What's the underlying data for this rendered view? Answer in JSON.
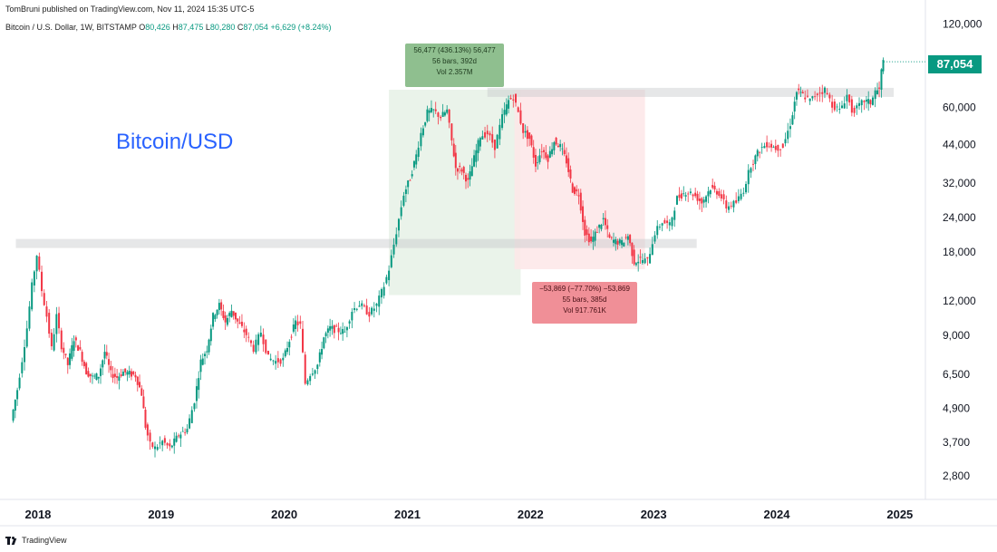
{
  "header": {
    "published": "TomBruni published on TradingView.com, Nov 11, 2024 15:35 UTC-5",
    "symbol": "Bitcoin / U.S. Dollar, 1W, BITSTAMP",
    "o_label": "O",
    "o": "80,426",
    "h_label": "H",
    "h": "87,475",
    "l_label": "L",
    "l": "80,280",
    "c_label": "C",
    "c": "87,054",
    "change": "+6,629 (+8.24%)"
  },
  "footer": {
    "brand": "TradingView"
  },
  "annotation": "Bitcoin/USD",
  "last_price": "87,054",
  "measure_up": {
    "line1": "56,477 (436.13%) 56,477",
    "line2": "56 bars, 392d",
    "line3": "Vol 2.357M"
  },
  "measure_down": {
    "line1": "−53,869 (−77.70%) −53,869",
    "line2": "55 bars, 385d",
    "line3": "Vol 917.761K"
  },
  "colors": {
    "up": "#089981",
    "down": "#f23645",
    "annotation": "#2962ff",
    "measure_up_fill": "#e8f2e8",
    "measure_down_fill": "#fde6e8"
  },
  "chart_data": {
    "type": "candlestick",
    "title": "",
    "x_ticks": [
      "2018",
      "2019",
      "2020",
      "2021",
      "2022",
      "2023",
      "2024",
      "2025"
    ],
    "y_ticks": [
      120000,
      60000,
      44000,
      32000,
      24000,
      18000,
      12000,
      9000,
      6500,
      4900,
      3700,
      2800
    ],
    "y_tick_labels": [
      "120,000",
      "60,000",
      "44,000",
      "32,000",
      "24,000",
      "18,000",
      "12,000",
      "9,000",
      "6,500",
      "4,900",
      "3,700",
      "2,800"
    ],
    "y_scale": "log",
    "ylim": [
      2300,
      130000
    ],
    "xlim": [
      2017.75,
      2025.2
    ],
    "resistance_zones": [
      {
        "price": 19200,
        "from": 2017.82,
        "to": 2023.35
      },
      {
        "price": 67500,
        "from": 2021.65,
        "to": 2024.95
      }
    ],
    "measures": [
      {
        "from": 2020.85,
        "to": 2021.92,
        "low": 12500,
        "high": 69000,
        "change": 56477
      },
      {
        "from": 2021.87,
        "to": 2022.93,
        "low": 15500,
        "high": 69000,
        "change": -53869
      }
    ],
    "price_path": [
      [
        2017.79,
        4400
      ],
      [
        2017.84,
        5700
      ],
      [
        2017.88,
        7300
      ],
      [
        2017.92,
        9500
      ],
      [
        2017.96,
        13500
      ],
      [
        2018.0,
        17500
      ],
      [
        2018.04,
        13000
      ],
      [
        2018.08,
        10500
      ],
      [
        2018.12,
        8000
      ],
      [
        2018.16,
        10500
      ],
      [
        2018.2,
        8200
      ],
      [
        2018.25,
        7000
      ],
      [
        2018.3,
        8700
      ],
      [
        2018.35,
        7800
      ],
      [
        2018.4,
        6600
      ],
      [
        2018.45,
        6300
      ],
      [
        2018.5,
        6400
      ],
      [
        2018.55,
        7800
      ],
      [
        2018.6,
        6500
      ],
      [
        2018.65,
        6300
      ],
      [
        2018.7,
        6600
      ],
      [
        2018.75,
        6500
      ],
      [
        2018.8,
        6400
      ],
      [
        2018.85,
        5500
      ],
      [
        2018.88,
        4200
      ],
      [
        2018.92,
        3600
      ],
      [
        2018.96,
        3500
      ],
      [
        2019.02,
        3700
      ],
      [
        2019.08,
        3500
      ],
      [
        2019.15,
        3900
      ],
      [
        2019.22,
        4100
      ],
      [
        2019.28,
        5200
      ],
      [
        2019.33,
        7200
      ],
      [
        2019.38,
        8000
      ],
      [
        2019.43,
        10500
      ],
      [
        2019.48,
        11500
      ],
      [
        2019.53,
        10000
      ],
      [
        2019.58,
        11000
      ],
      [
        2019.63,
        10000
      ],
      [
        2019.7,
        9000
      ],
      [
        2019.76,
        8000
      ],
      [
        2019.82,
        9200
      ],
      [
        2019.88,
        7400
      ],
      [
        2019.94,
        7200
      ],
      [
        2020.0,
        7300
      ],
      [
        2020.05,
        8600
      ],
      [
        2020.1,
        10000
      ],
      [
        2020.14,
        9700
      ],
      [
        2020.18,
        6000
      ],
      [
        2020.22,
        6500
      ],
      [
        2020.28,
        7000
      ],
      [
        2020.33,
        8800
      ],
      [
        2020.38,
        9500
      ],
      [
        2020.45,
        9300
      ],
      [
        2020.5,
        9200
      ],
      [
        2020.56,
        11000
      ],
      [
        2020.62,
        11600
      ],
      [
        2020.7,
        10700
      ],
      [
        2020.76,
        11500
      ],
      [
        2020.82,
        13500
      ],
      [
        2020.86,
        15500
      ],
      [
        2020.9,
        19000
      ],
      [
        2020.94,
        23500
      ],
      [
        2020.98,
        29000
      ],
      [
        2021.03,
        33000
      ],
      [
        2021.08,
        40000
      ],
      [
        2021.12,
        48000
      ],
      [
        2021.17,
        57000
      ],
      [
        2021.22,
        58000
      ],
      [
        2021.28,
        55000
      ],
      [
        2021.33,
        58000
      ],
      [
        2021.37,
        45000
      ],
      [
        2021.4,
        36000
      ],
      [
        2021.45,
        35500
      ],
      [
        2021.5,
        32000
      ],
      [
        2021.55,
        39000
      ],
      [
        2021.6,
        47000
      ],
      [
        2021.66,
        48000
      ],
      [
        2021.72,
        43000
      ],
      [
        2021.78,
        55000
      ],
      [
        2021.83,
        63000
      ],
      [
        2021.87,
        65000
      ],
      [
        2021.91,
        57000
      ],
      [
        2021.95,
        49000
      ],
      [
        2022.0,
        46000
      ],
      [
        2022.05,
        37000
      ],
      [
        2022.1,
        42000
      ],
      [
        2022.15,
        39000
      ],
      [
        2022.2,
        45000
      ],
      [
        2022.25,
        43000
      ],
      [
        2022.3,
        38000
      ],
      [
        2022.35,
        30000
      ],
      [
        2022.4,
        29000
      ],
      [
        2022.45,
        21000
      ],
      [
        2022.5,
        19500
      ],
      [
        2022.55,
        21500
      ],
      [
        2022.6,
        23500
      ],
      [
        2022.65,
        20000
      ],
      [
        2022.7,
        19500
      ],
      [
        2022.75,
        19300
      ],
      [
        2022.8,
        20500
      ],
      [
        2022.85,
        16500
      ],
      [
        2022.9,
        16800
      ],
      [
        2022.96,
        16600
      ],
      [
        2023.02,
        21000
      ],
      [
        2023.08,
        23000
      ],
      [
        2023.14,
        22300
      ],
      [
        2023.2,
        28000
      ],
      [
        2023.27,
        29500
      ],
      [
        2023.33,
        29000
      ],
      [
        2023.4,
        27000
      ],
      [
        2023.47,
        30500
      ],
      [
        2023.54,
        29200
      ],
      [
        2023.6,
        26000
      ],
      [
        2023.68,
        27000
      ],
      [
        2023.74,
        30000
      ],
      [
        2023.8,
        37000
      ],
      [
        2023.87,
        42000
      ],
      [
        2023.93,
        44000
      ],
      [
        2024.0,
        42500
      ],
      [
        2024.06,
        43000
      ],
      [
        2024.12,
        52000
      ],
      [
        2024.17,
        68000
      ],
      [
        2024.22,
        66000
      ],
      [
        2024.28,
        63000
      ],
      [
        2024.34,
        67000
      ],
      [
        2024.4,
        69000
      ],
      [
        2024.46,
        61000
      ],
      [
        2024.52,
        58000
      ],
      [
        2024.58,
        66000
      ],
      [
        2024.62,
        58000
      ],
      [
        2024.66,
        59000
      ],
      [
        2024.72,
        63000
      ],
      [
        2024.77,
        62000
      ],
      [
        2024.81,
        68000
      ],
      [
        2024.84,
        69000
      ],
      [
        2024.86,
        80426
      ],
      [
        2024.87,
        87054
      ]
    ]
  }
}
